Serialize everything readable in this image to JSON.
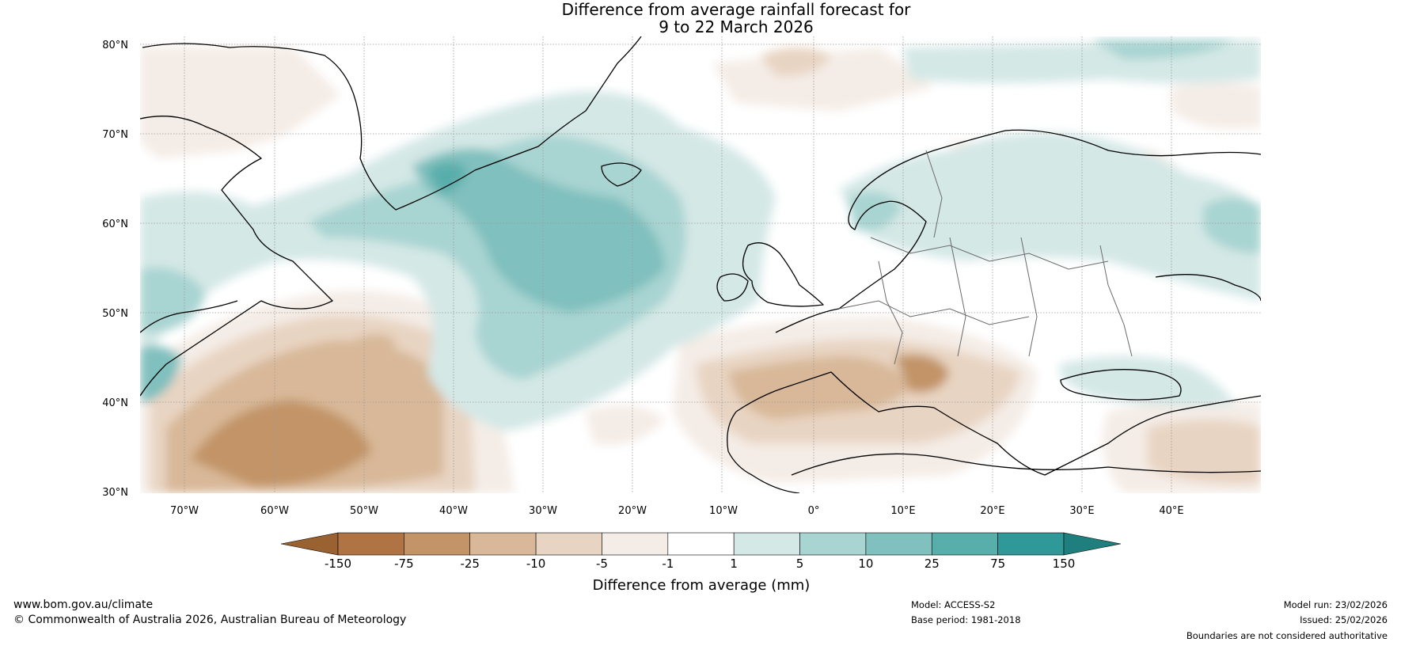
{
  "title": {
    "line1": "Difference from average rainfall forecast for",
    "line2": "9 to 22 March 2026"
  },
  "map": {
    "latitude_labels": [
      "80°N",
      "70°N",
      "60°N",
      "50°N",
      "40°N",
      "30°N"
    ],
    "longitude_labels": [
      "70°W",
      "60°W",
      "50°W",
      "40°W",
      "30°W",
      "20°W",
      "10°W",
      "0°",
      "10°E",
      "20°E",
      "30°E",
      "40°E"
    ],
    "lat_range": [
      30,
      80
    ],
    "lon_range": [
      -75,
      50
    ]
  },
  "colorbar": {
    "ticks": [
      "-150",
      "-75",
      "-25",
      "-10",
      "-5",
      "-1",
      "1",
      "5",
      "10",
      "25",
      "75",
      "150"
    ],
    "colors": [
      "#9a6230",
      "#b07444",
      "#c29468",
      "#d8b898",
      "#e8d4c2",
      "#f4ece6",
      "#ffffff",
      "#d4e8e6",
      "#a8d4d2",
      "#80c0be",
      "#58aeab",
      "#2f9898",
      "#1f7f7f"
    ],
    "label": "Difference from average (mm)"
  },
  "footer": {
    "website": "www.bom.gov.au/climate",
    "copyright": "© Commonwealth of Australia 2026, Australian Bureau of Meteorology",
    "model": "Model: ACCESS-S2",
    "base_period": "Base period: 1981-2018",
    "model_run": "Model run: 23/02/2026",
    "issued": "Issued: 25/02/2026",
    "disclaimer": "Boundaries are not considered authoritative"
  }
}
